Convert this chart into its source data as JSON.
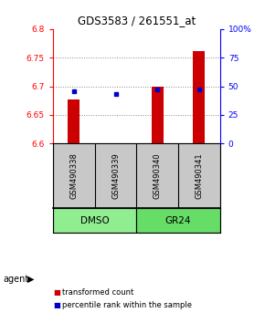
{
  "title": "GDS3583 / 261551_at",
  "samples": [
    "GSM490338",
    "GSM490339",
    "GSM490340",
    "GSM490341"
  ],
  "group_labels": [
    "DMSO",
    "GR24"
  ],
  "group_colors": [
    "#90EE90",
    "#66DD66"
  ],
  "red_values": [
    6.677,
    6.601,
    6.699,
    6.762
  ],
  "red_base": 6.6,
  "blue_values": [
    46,
    43,
    47,
    47
  ],
  "ylim": [
    6.6,
    6.8
  ],
  "yticks": [
    6.6,
    6.65,
    6.7,
    6.75,
    6.8
  ],
  "ytick_labels": [
    "6.6",
    "6.65",
    "6.7",
    "6.75",
    "6.8"
  ],
  "y2lim": [
    0,
    100
  ],
  "y2ticks": [
    0,
    25,
    50,
    75,
    100
  ],
  "y2tick_labels": [
    "0",
    "25",
    "50",
    "75",
    "100%"
  ],
  "bar_color": "#CC0000",
  "dot_color": "#0000CC",
  "background_color": "#ffffff",
  "grid_color": "#888888",
  "agent_label": "agent",
  "legend_red": "transformed count",
  "legend_blue": "percentile rank within the sample"
}
